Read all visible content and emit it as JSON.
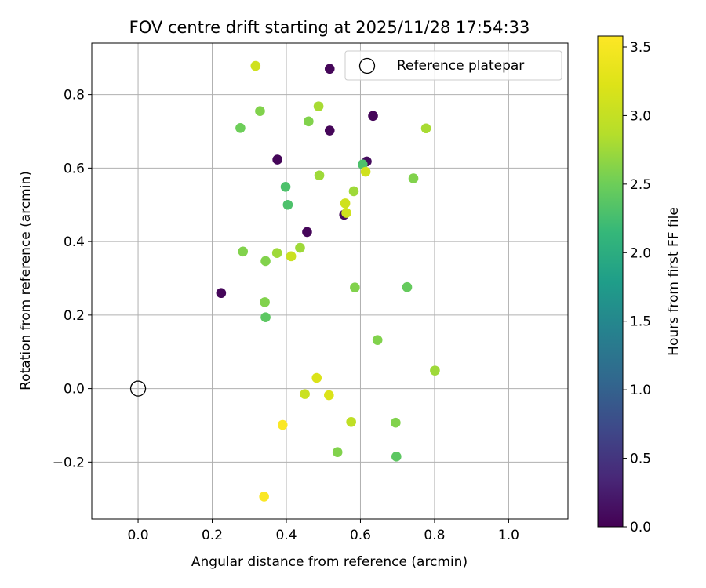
{
  "chart_data": {
    "type": "scatter",
    "title": "FOV centre drift starting at 2025/11/28 17:54:33",
    "xlabel": "Angular distance from reference (arcmin)",
    "ylabel": "Rotation from reference (arcmin)",
    "xlim": [
      -0.125,
      1.16
    ],
    "ylim": [
      -0.355,
      0.94
    ],
    "xticks": [
      0.0,
      0.2,
      0.4,
      0.6,
      0.8,
      1.0
    ],
    "xtick_labels": [
      "0.0",
      "0.2",
      "0.4",
      "0.6",
      "0.8",
      "1.0"
    ],
    "yticks": [
      -0.2,
      0.0,
      0.2,
      0.4,
      0.6,
      0.8
    ],
    "ytick_labels": [
      "−0.2",
      "0.0",
      "0.2",
      "0.4",
      "0.6",
      "0.8"
    ],
    "grid": true,
    "colorbar": {
      "label": "Hours from first FF file",
      "colormap": "viridis",
      "range": [
        0.0,
        3.58
      ],
      "ticks": [
        0.0,
        0.5,
        1.0,
        1.5,
        2.0,
        2.5,
        3.0,
        3.5
      ],
      "tick_labels": [
        "0.0",
        "0.5",
        "1.0",
        "1.5",
        "2.0",
        "2.5",
        "3.0",
        "3.5"
      ]
    },
    "reference": {
      "label": "Reference platepar",
      "x": 0.0,
      "y": 0.0
    },
    "legend_position": "top-right",
    "points": [
      {
        "x": 0.317,
        "y": 0.878,
        "hours": 3.1
      },
      {
        "x": 0.517,
        "y": 0.87,
        "hours": 0.05
      },
      {
        "x": 0.487,
        "y": 0.768,
        "hours": 2.8
      },
      {
        "x": 0.329,
        "y": 0.755,
        "hours": 2.6
      },
      {
        "x": 0.634,
        "y": 0.742,
        "hours": 0.05
      },
      {
        "x": 0.46,
        "y": 0.727,
        "hours": 2.6
      },
      {
        "x": 0.276,
        "y": 0.709,
        "hours": 2.5
      },
      {
        "x": 0.777,
        "y": 0.708,
        "hours": 2.8
      },
      {
        "x": 0.517,
        "y": 0.702,
        "hours": 0.05
      },
      {
        "x": 0.376,
        "y": 0.623,
        "hours": 0.05
      },
      {
        "x": 0.617,
        "y": 0.618,
        "hours": 0.1
      },
      {
        "x": 0.606,
        "y": 0.61,
        "hours": 2.3
      },
      {
        "x": 0.614,
        "y": 0.59,
        "hours": 3.1
      },
      {
        "x": 0.489,
        "y": 0.58,
        "hours": 2.75
      },
      {
        "x": 0.743,
        "y": 0.572,
        "hours": 2.6
      },
      {
        "x": 0.398,
        "y": 0.549,
        "hours": 2.3
      },
      {
        "x": 0.582,
        "y": 0.537,
        "hours": 2.75
      },
      {
        "x": 0.559,
        "y": 0.504,
        "hours": 3.1
      },
      {
        "x": 0.404,
        "y": 0.5,
        "hours": 2.3
      },
      {
        "x": 0.556,
        "y": 0.473,
        "hours": 0.1
      },
      {
        "x": 0.562,
        "y": 0.478,
        "hours": 3.1
      },
      {
        "x": 0.456,
        "y": 0.426,
        "hours": 0.05
      },
      {
        "x": 0.437,
        "y": 0.383,
        "hours": 2.75
      },
      {
        "x": 0.283,
        "y": 0.373,
        "hours": 2.6
      },
      {
        "x": 0.375,
        "y": 0.369,
        "hours": 2.75
      },
      {
        "x": 0.413,
        "y": 0.36,
        "hours": 3.05
      },
      {
        "x": 0.344,
        "y": 0.347,
        "hours": 2.6
      },
      {
        "x": 0.585,
        "y": 0.275,
        "hours": 2.6
      },
      {
        "x": 0.726,
        "y": 0.276,
        "hours": 2.45
      },
      {
        "x": 0.224,
        "y": 0.26,
        "hours": 0.05
      },
      {
        "x": 0.342,
        "y": 0.235,
        "hours": 2.6
      },
      {
        "x": 0.344,
        "y": 0.194,
        "hours": 2.4
      },
      {
        "x": 0.646,
        "y": 0.132,
        "hours": 2.6
      },
      {
        "x": 0.801,
        "y": 0.049,
        "hours": 2.75
      },
      {
        "x": 0.482,
        "y": 0.029,
        "hours": 3.2
      },
      {
        "x": 0.45,
        "y": -0.015,
        "hours": 3.05
      },
      {
        "x": 0.515,
        "y": -0.018,
        "hours": 3.2
      },
      {
        "x": 0.575,
        "y": -0.091,
        "hours": 2.95
      },
      {
        "x": 0.695,
        "y": -0.093,
        "hours": 2.6
      },
      {
        "x": 0.39,
        "y": -0.099,
        "hours": 3.55
      },
      {
        "x": 0.538,
        "y": -0.173,
        "hours": 2.6
      },
      {
        "x": 0.697,
        "y": -0.185,
        "hours": 2.4
      },
      {
        "x": 0.34,
        "y": -0.294,
        "hours": 3.55
      }
    ]
  }
}
